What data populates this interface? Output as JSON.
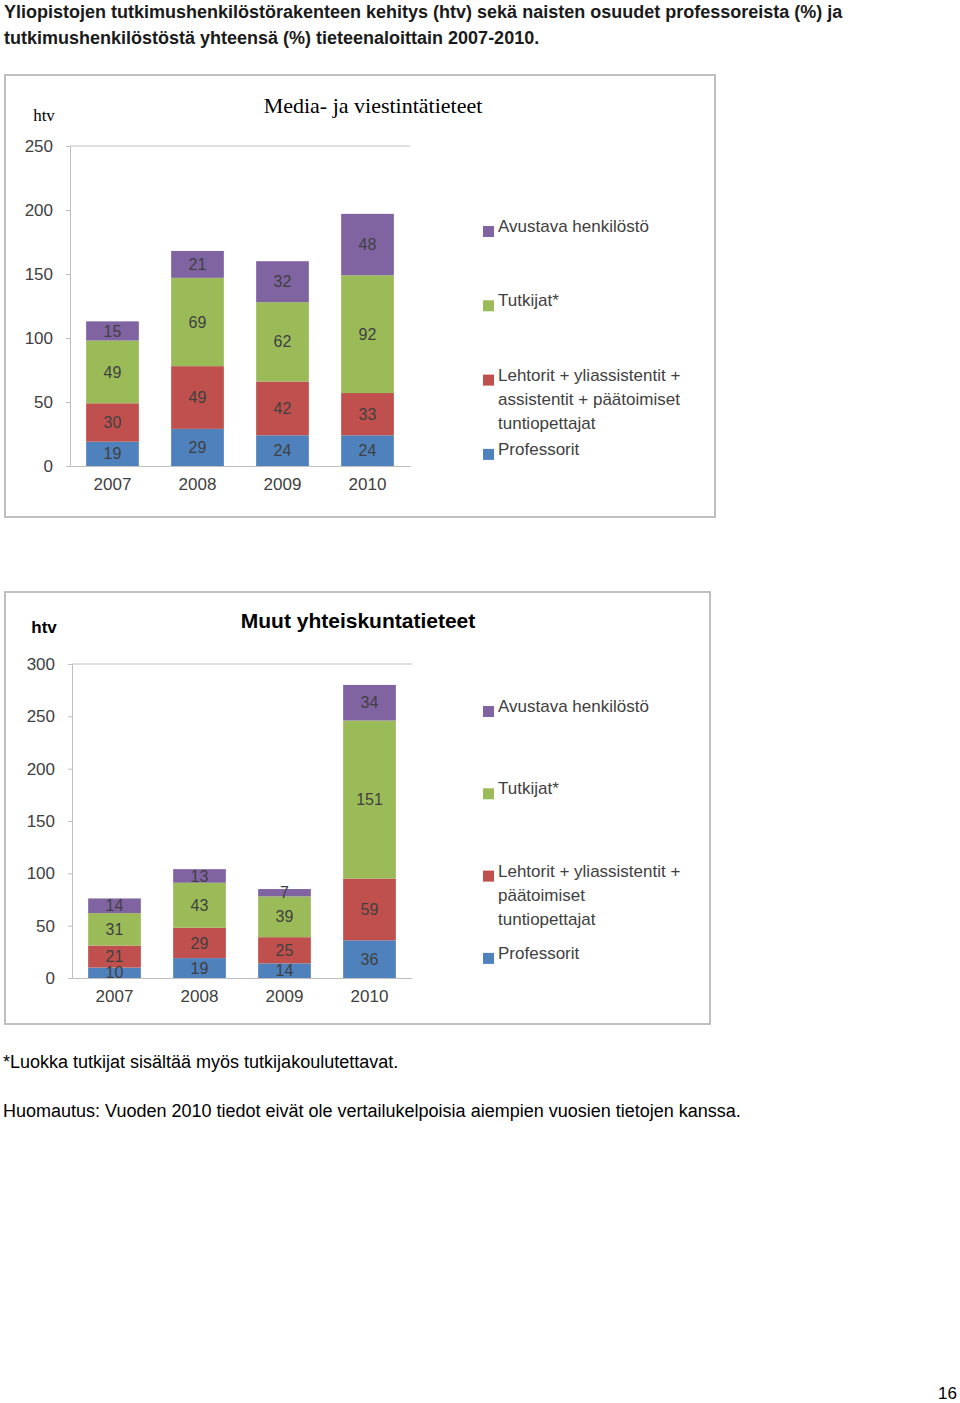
{
  "page": {
    "title": [
      "Yliopistojen tutkimushenkilöstörakenteen kehitys (htv) sekä naisten osuudet professoreista (%) ja",
      "tutkimushenkilöstöstä yhteensä (%) tieteenaloittain 2007-2010."
    ],
    "footnotes": [
      "*Luokka tutkijat sisältää myös tutkijakoulutettavat.",
      "Huomautus: Vuoden 2010 tiedot eivät ole vertailukelpoisia aiempien vuosien tietojen kanssa."
    ],
    "page_number": "16"
  },
  "chart_data": [
    {
      "type": "bar",
      "title": "Media- ja viestintätieteet",
      "y_label": "htv",
      "categories": [
        "2007",
        "2008",
        "2009",
        "2010"
      ],
      "stacked": true,
      "data_labels": true,
      "grid": false,
      "legend": "right",
      "ylim": [
        0,
        250
      ],
      "yticks": [
        0,
        50,
        100,
        150,
        200,
        250
      ],
      "series": [
        {
          "name": "Professorit",
          "color": "#4f81bd",
          "values": [
            19,
            29,
            24,
            24
          ]
        },
        {
          "name": "Lehtorit + yliassistentit + assistentit + päätoimiset tuntiopettajat",
          "color": "#c0504d",
          "values": [
            30,
            49,
            42,
            33
          ]
        },
        {
          "name": "Tutkijat*",
          "color": "#9bbb59",
          "values": [
            49,
            69,
            62,
            92
          ]
        },
        {
          "name": "Avustava henkilöstö",
          "color": "#8064a2",
          "values": [
            15,
            21,
            32,
            48
          ]
        }
      ]
    },
    {
      "type": "bar",
      "title": "Muut yhteiskuntatieteet",
      "y_label": "htv",
      "categories": [
        "2007",
        "2008",
        "2009",
        "2010"
      ],
      "stacked": true,
      "data_labels": true,
      "grid": false,
      "legend": "right",
      "ylim": [
        0,
        300
      ],
      "yticks": [
        0,
        50,
        100,
        150,
        200,
        250,
        300
      ],
      "series": [
        {
          "name": "Professorit",
          "color": "#4f81bd",
          "values": [
            10,
            19,
            14,
            36
          ]
        },
        {
          "name": "Lehtorit + yliassistentit + päätoimiset tuntiopettajat",
          "color": "#c0504d",
          "values": [
            21,
            29,
            25,
            59
          ]
        },
        {
          "name": "Tutkijat*",
          "color": "#9bbb59",
          "values": [
            31,
            43,
            39,
            151
          ]
        },
        {
          "name": "Avustava henkilöstö",
          "color": "#8064a2",
          "values": [
            14,
            13,
            7,
            34
          ]
        }
      ]
    }
  ]
}
